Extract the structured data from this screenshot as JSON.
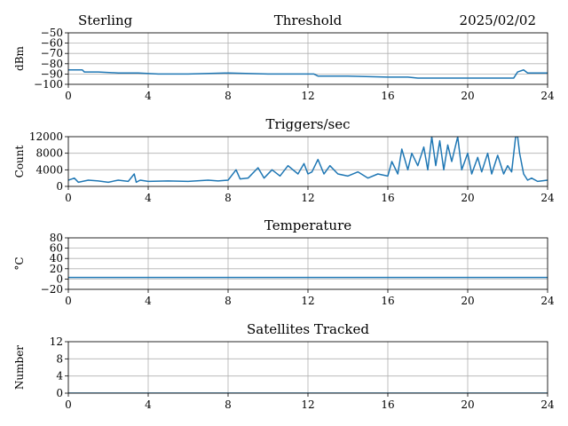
{
  "header": {
    "station": "Sterling",
    "date": "2025/02/02"
  },
  "colors": {
    "series": "#1f77b4",
    "grid": "#b0b0b0"
  },
  "chart_data": [
    {
      "id": "threshold",
      "type": "line",
      "title": "Threshold",
      "xlabel": "",
      "ylabel": "dBm",
      "xlim": [
        0,
        24
      ],
      "ylim": [
        -100,
        -50
      ],
      "xticks": [
        0,
        4,
        8,
        12,
        16,
        20,
        24
      ],
      "yticks": [
        -50,
        -60,
        -70,
        -80,
        -90,
        -100
      ],
      "ytick_labels": [
        "−50",
        "−60",
        "−70",
        "−80",
        "−90",
        "−100"
      ],
      "grid": true,
      "series": [
        {
          "x": [
            0,
            0.7,
            0.8,
            1.5,
            2.5,
            3.5,
            4.5,
            6,
            8,
            10,
            12.3,
            12.5,
            14,
            16,
            17,
            17.5,
            20,
            22.3,
            22.5,
            22.8,
            23,
            24
          ],
          "y": [
            -86,
            -86,
            -88,
            -88,
            -89,
            -89,
            -90,
            -90,
            -89,
            -90,
            -90,
            -92,
            -92,
            -93,
            -93,
            -94,
            -94,
            -94,
            -88,
            -86,
            -89,
            -89
          ]
        }
      ]
    },
    {
      "id": "triggers",
      "type": "line",
      "title": "Triggers/sec",
      "xlabel": "",
      "ylabel": "Count",
      "xlim": [
        0,
        24
      ],
      "ylim": [
        0,
        12000
      ],
      "xticks": [
        0,
        4,
        8,
        12,
        16,
        20,
        24
      ],
      "yticks": [
        0,
        4000,
        8000,
        12000
      ],
      "ytick_labels": [
        "0",
        "4000",
        "8000",
        "12000"
      ],
      "grid": true,
      "series": [
        {
          "x": [
            0,
            0.3,
            0.5,
            1,
            1.5,
            2,
            2.5,
            3,
            3.3,
            3.4,
            3.6,
            4,
            5,
            6,
            7,
            7.5,
            8,
            8.4,
            8.6,
            9,
            9.5,
            9.8,
            10.2,
            10.6,
            11,
            11.5,
            11.8,
            12,
            12.2,
            12.5,
            12.8,
            13.1,
            13.5,
            14,
            14.5,
            15,
            15.5,
            16,
            16.2,
            16.5,
            16.7,
            17,
            17.2,
            17.5,
            17.8,
            18,
            18.2,
            18.4,
            18.6,
            18.8,
            19,
            19.2,
            19.5,
            19.7,
            20,
            20.2,
            20.5,
            20.7,
            21,
            21.2,
            21.5,
            21.8,
            22,
            22.2,
            22.4,
            22.5,
            22.6,
            22.8,
            23,
            23.2,
            23.5,
            24
          ],
          "y": [
            1500,
            2000,
            1000,
            1500,
            1300,
            1000,
            1500,
            1200,
            3000,
            1000,
            1500,
            1200,
            1300,
            1200,
            1500,
            1300,
            1500,
            4000,
            1800,
            2000,
            4500,
            2000,
            4000,
            2500,
            5000,
            3000,
            5500,
            3000,
            3500,
            6500,
            3000,
            5000,
            3000,
            2500,
            3500,
            2000,
            3000,
            2500,
            6000,
            3000,
            9000,
            4000,
            8000,
            5000,
            9500,
            4000,
            12000,
            5000,
            11000,
            4000,
            10000,
            6000,
            12000,
            4000,
            8000,
            3000,
            7000,
            3500,
            8000,
            3000,
            7500,
            3000,
            5000,
            3500,
            12000,
            12000,
            8000,
            3000,
            1500,
            2000,
            1200,
            1500
          ]
        }
      ]
    },
    {
      "id": "temperature",
      "type": "line",
      "title": "Temperature",
      "xlabel": "",
      "ylabel": "°C",
      "xlim": [
        0,
        24
      ],
      "ylim": [
        -20,
        80
      ],
      "xticks": [
        0,
        4,
        8,
        12,
        16,
        20,
        24
      ],
      "yticks": [
        -20,
        0,
        20,
        40,
        60,
        80
      ],
      "ytick_labels": [
        "−20",
        "0",
        "20",
        "40",
        "60",
        "80"
      ],
      "grid": true,
      "series": [
        {
          "x": [
            0,
            24
          ],
          "y": [
            3,
            3
          ]
        }
      ]
    },
    {
      "id": "satellites",
      "type": "line",
      "title": "Satellites Tracked",
      "xlabel": "",
      "ylabel": "Number",
      "xlim": [
        0,
        24
      ],
      "ylim": [
        0,
        12
      ],
      "xticks": [
        0,
        4,
        8,
        12,
        16,
        20,
        24
      ],
      "yticks": [
        0,
        4,
        8,
        12
      ],
      "ytick_labels": [
        "0",
        "4",
        "8",
        "12"
      ],
      "grid": true,
      "series": [
        {
          "x": [
            0,
            24
          ],
          "y": [
            0,
            0
          ]
        }
      ]
    }
  ]
}
